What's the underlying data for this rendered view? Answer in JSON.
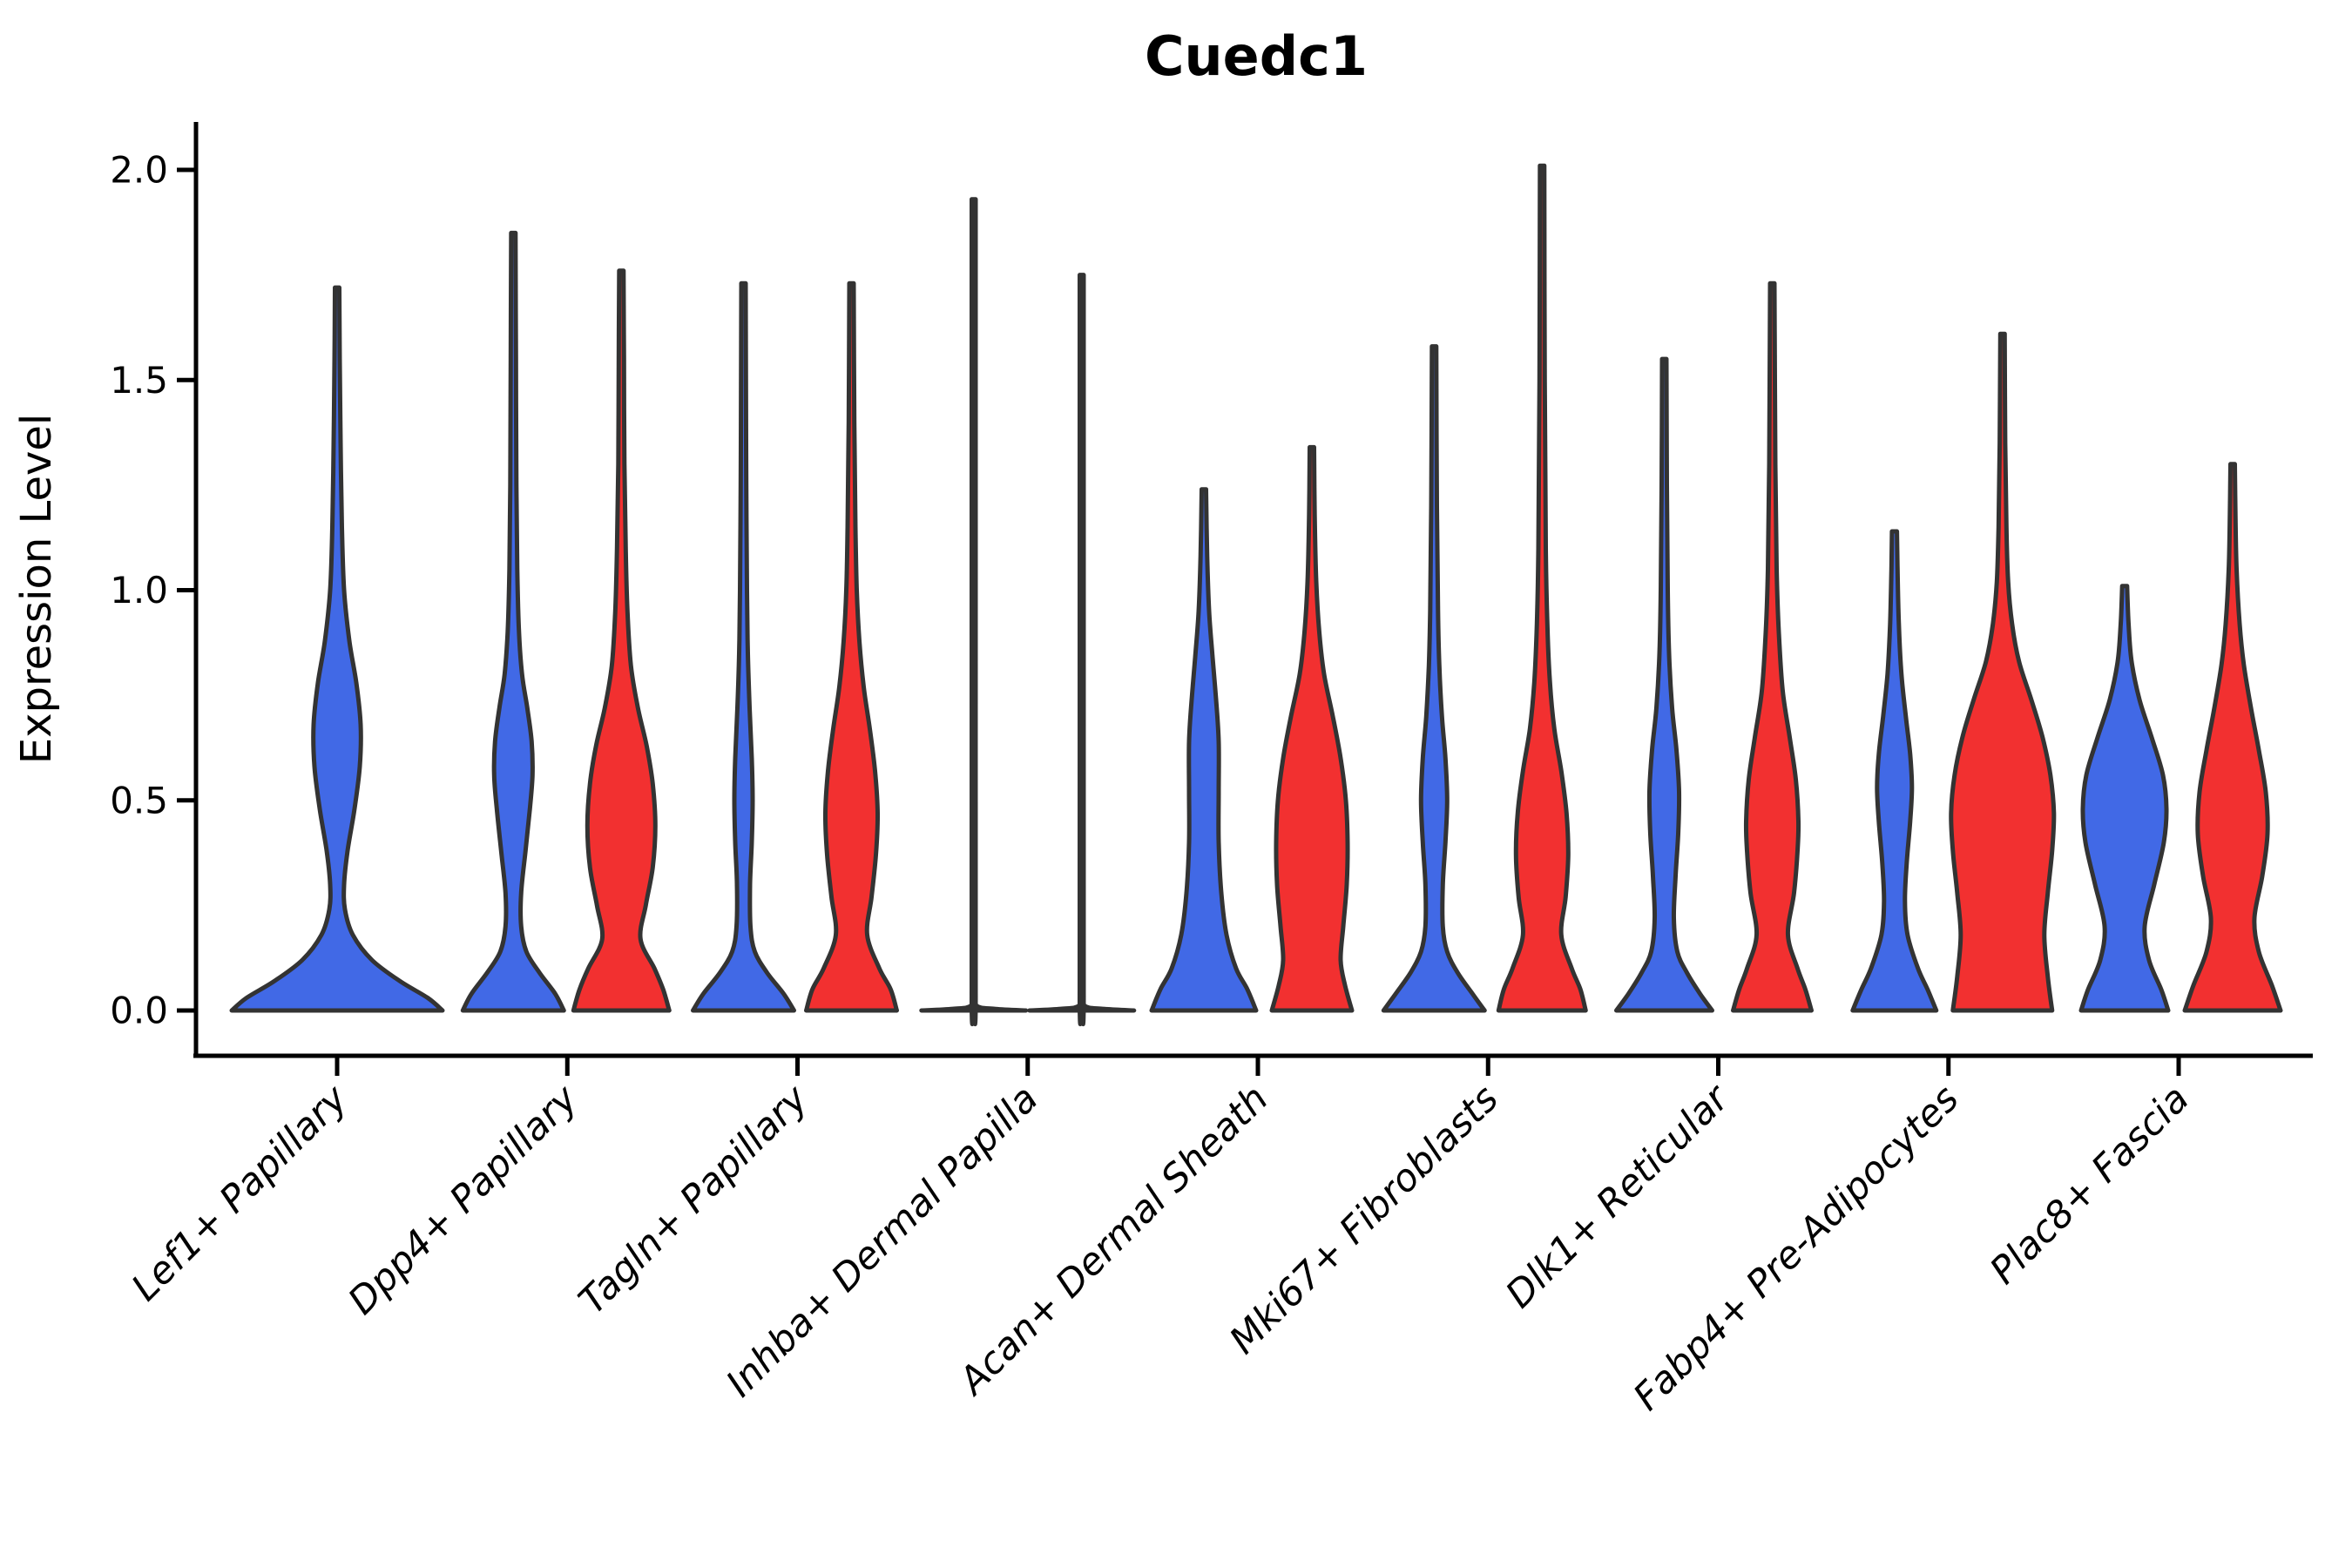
{
  "title": "Cuedc1",
  "chart_data": {
    "type": "violin",
    "title": "Cuedc1",
    "xlabel": "",
    "ylabel": "Expression Level",
    "ylim": [
      0,
      2.05
    ],
    "grid": false,
    "legend": "none",
    "y_ticks": [
      {
        "label": "0.0",
        "value": 0.0
      },
      {
        "label": "0.5",
        "value": 0.5
      },
      {
        "label": "1.0",
        "value": 1.0
      },
      {
        "label": "1.5",
        "value": 1.5
      },
      {
        "label": "2.0",
        "value": 2.0
      }
    ],
    "categories": [
      "Lef1+ Papillary",
      "Dpp4+ Papillary",
      "Tagln+ Papillary",
      "Inhba+ Dermal Papilla",
      "Acan+ Dermal Sheath",
      "Mki67+ Fibroblasts",
      "Dlk1+ Reticular",
      "Fabp4+ Pre-Adipocytes",
      "Plac8+ Fascia"
    ],
    "palette": {
      "blue": "#4169E6",
      "red": "#F23030",
      "outline": "#333333"
    },
    "profile_units": "pairs of [expression_value, half_width_px_at_2700px_canvas]",
    "violins": [
      {
        "category_index": 0,
        "category": "Lef1+ Papillary",
        "color": "blue",
        "position": "center",
        "max_expression": 1.72,
        "profile": [
          [
            0,
            121
          ],
          [
            0.03,
            104
          ],
          [
            0.07,
            72
          ],
          [
            0.12,
            40
          ],
          [
            0.18,
            18
          ],
          [
            0.24,
            9
          ],
          [
            0.3,
            8
          ],
          [
            0.38,
            12
          ],
          [
            0.48,
            20
          ],
          [
            0.58,
            26
          ],
          [
            0.68,
            27
          ],
          [
            0.78,
            22
          ],
          [
            0.88,
            14
          ],
          [
            1.0,
            8
          ],
          [
            1.15,
            5.5
          ],
          [
            1.35,
            4
          ],
          [
            1.55,
            3
          ],
          [
            1.72,
            2.5
          ]
        ]
      },
      {
        "category_index": 1,
        "category": "Dpp4+ Papillary",
        "color": "blue",
        "position": "left",
        "max_expression": 1.85,
        "profile": [
          [
            0,
            58
          ],
          [
            0.04,
            48
          ],
          [
            0.09,
            30
          ],
          [
            0.14,
            15
          ],
          [
            0.2,
            9
          ],
          [
            0.28,
            9
          ],
          [
            0.38,
            14
          ],
          [
            0.48,
            19
          ],
          [
            0.56,
            22
          ],
          [
            0.64,
            21
          ],
          [
            0.72,
            16
          ],
          [
            0.8,
            10
          ],
          [
            0.9,
            6.5
          ],
          [
            1.05,
            4.5
          ],
          [
            1.25,
            3.5
          ],
          [
            1.55,
            3
          ],
          [
            1.85,
            2.5
          ]
        ]
      },
      {
        "category_index": 1,
        "category": "Dpp4+ Papillary",
        "color": "red",
        "position": "right",
        "max_expression": 1.76,
        "profile": [
          [
            0,
            55
          ],
          [
            0.05,
            48
          ],
          [
            0.1,
            38
          ],
          [
            0.17,
            22
          ],
          [
            0.25,
            28
          ],
          [
            0.34,
            36
          ],
          [
            0.44,
            39
          ],
          [
            0.54,
            36
          ],
          [
            0.63,
            29
          ],
          [
            0.72,
            19
          ],
          [
            0.82,
            11
          ],
          [
            0.95,
            7
          ],
          [
            1.1,
            5
          ],
          [
            1.3,
            3.5
          ],
          [
            1.55,
            3
          ],
          [
            1.76,
            2.5
          ]
        ]
      },
      {
        "category_index": 2,
        "category": "Tagln+ Papillary",
        "color": "blue",
        "position": "left",
        "max_expression": 1.73,
        "profile": [
          [
            0,
            58
          ],
          [
            0.04,
            46
          ],
          [
            0.09,
            27
          ],
          [
            0.14,
            13
          ],
          [
            0.2,
            8
          ],
          [
            0.3,
            7.5
          ],
          [
            0.4,
            9.5
          ],
          [
            0.5,
            10.5
          ],
          [
            0.6,
            9.5
          ],
          [
            0.72,
            7
          ],
          [
            0.85,
            5
          ],
          [
            1.0,
            4
          ],
          [
            1.25,
            3.2
          ],
          [
            1.5,
            2.8
          ],
          [
            1.73,
            2.5
          ]
        ]
      },
      {
        "category_index": 2,
        "category": "Tagln+ Papillary",
        "color": "red",
        "position": "right",
        "max_expression": 1.73,
        "profile": [
          [
            0,
            52
          ],
          [
            0.05,
            45
          ],
          [
            0.1,
            32
          ],
          [
            0.18,
            18
          ],
          [
            0.27,
            23
          ],
          [
            0.37,
            28
          ],
          [
            0.47,
            30
          ],
          [
            0.57,
            27
          ],
          [
            0.67,
            21
          ],
          [
            0.77,
            14
          ],
          [
            0.88,
            9
          ],
          [
            1.0,
            6
          ],
          [
            1.15,
            4.5
          ],
          [
            1.4,
            3.2
          ],
          [
            1.73,
            2.5
          ]
        ]
      },
      {
        "category_index": 3,
        "category": "Inhba+ Dermal Papilla",
        "color": "blue",
        "position": "left",
        "max_expression": 1.93,
        "profile": [
          [
            0,
            60
          ],
          [
            0.004,
            24
          ],
          [
            0.012,
            3
          ],
          [
            0.05,
            2.3
          ],
          [
            1.0,
            2.3
          ],
          [
            1.93,
            2.3
          ]
        ]
      },
      {
        "category_index": 3,
        "category": "Inhba+ Dermal Papilla",
        "color": "red",
        "position": "right",
        "max_expression": 1.75,
        "profile": [
          [
            0,
            60
          ],
          [
            0.004,
            24
          ],
          [
            0.012,
            3
          ],
          [
            0.05,
            2.3
          ],
          [
            1.0,
            2.3
          ],
          [
            1.75,
            2.3
          ]
        ]
      },
      {
        "category_index": 4,
        "category": "Acan+ Dermal Sheath",
        "color": "blue",
        "position": "left",
        "max_expression": 1.24,
        "profile": [
          [
            0,
            60
          ],
          [
            0.05,
            50
          ],
          [
            0.1,
            37
          ],
          [
            0.18,
            26
          ],
          [
            0.28,
            20
          ],
          [
            0.4,
            17
          ],
          [
            0.52,
            17
          ],
          [
            0.64,
            17
          ],
          [
            0.74,
            14
          ],
          [
            0.84,
            10
          ],
          [
            0.95,
            6
          ],
          [
            1.08,
            3.8
          ],
          [
            1.24,
            2.5
          ]
        ]
      },
      {
        "category_index": 4,
        "category": "Acan+ Dermal Sheath",
        "color": "red",
        "position": "right",
        "max_expression": 1.34,
        "profile": [
          [
            0,
            46
          ],
          [
            0.06,
            38
          ],
          [
            0.12,
            33
          ],
          [
            0.2,
            36
          ],
          [
            0.3,
            40
          ],
          [
            0.4,
            41
          ],
          [
            0.5,
            39
          ],
          [
            0.6,
            33
          ],
          [
            0.7,
            24
          ],
          [
            0.8,
            14
          ],
          [
            0.9,
            8.5
          ],
          [
            1.02,
            5
          ],
          [
            1.18,
            3.2
          ],
          [
            1.34,
            2.5
          ]
        ]
      },
      {
        "category_index": 5,
        "category": "Mki67+ Fibroblasts",
        "color": "blue",
        "position": "left",
        "max_expression": 1.58,
        "profile": [
          [
            0,
            58
          ],
          [
            0.04,
            44
          ],
          [
            0.09,
            27
          ],
          [
            0.14,
            15
          ],
          [
            0.2,
            10
          ],
          [
            0.3,
            10
          ],
          [
            0.4,
            13
          ],
          [
            0.5,
            15
          ],
          [
            0.6,
            13
          ],
          [
            0.7,
            9
          ],
          [
            0.82,
            6
          ],
          [
            0.95,
            4.5
          ],
          [
            1.2,
            3.2
          ],
          [
            1.58,
            2.5
          ]
        ]
      },
      {
        "category_index": 5,
        "category": "Mki67+ Fibroblasts",
        "color": "red",
        "position": "right",
        "max_expression": 2.01,
        "profile": [
          [
            0,
            50
          ],
          [
            0.05,
            44
          ],
          [
            0.1,
            34
          ],
          [
            0.18,
            22
          ],
          [
            0.27,
            27
          ],
          [
            0.37,
            30
          ],
          [
            0.47,
            28
          ],
          [
            0.57,
            22
          ],
          [
            0.67,
            14
          ],
          [
            0.78,
            9
          ],
          [
            0.92,
            6
          ],
          [
            1.1,
            4.2
          ],
          [
            1.5,
            3
          ],
          [
            2.01,
            2.5
          ]
        ]
      },
      {
        "category_index": 6,
        "category": "Dlk1+ Reticular",
        "color": "blue",
        "position": "left",
        "max_expression": 1.55,
        "profile": [
          [
            0,
            55
          ],
          [
            0.04,
            41
          ],
          [
            0.09,
            26
          ],
          [
            0.14,
            15
          ],
          [
            0.22,
            11
          ],
          [
            0.32,
            13
          ],
          [
            0.42,
            16
          ],
          [
            0.52,
            17
          ],
          [
            0.62,
            14
          ],
          [
            0.72,
            9
          ],
          [
            0.85,
            5.5
          ],
          [
            1.0,
            4
          ],
          [
            1.25,
            3
          ],
          [
            1.55,
            2.5
          ]
        ]
      },
      {
        "category_index": 6,
        "category": "Dlk1+ Reticular",
        "color": "red",
        "position": "right",
        "max_expression": 1.73,
        "profile": [
          [
            0,
            45
          ],
          [
            0.05,
            38
          ],
          [
            0.1,
            29
          ],
          [
            0.18,
            18
          ],
          [
            0.28,
            25
          ],
          [
            0.38,
            29
          ],
          [
            0.45,
            30
          ],
          [
            0.55,
            27
          ],
          [
            0.65,
            20
          ],
          [
            0.76,
            12
          ],
          [
            0.9,
            7.5
          ],
          [
            1.05,
            5
          ],
          [
            1.3,
            3.5
          ],
          [
            1.73,
            2.5
          ]
        ]
      },
      {
        "category_index": 7,
        "category": "Fabp4+ Pre-Adipocytes",
        "color": "blue",
        "position": "left",
        "max_expression": 1.14,
        "profile": [
          [
            0,
            48
          ],
          [
            0.05,
            38
          ],
          [
            0.1,
            27
          ],
          [
            0.18,
            15
          ],
          [
            0.26,
            12
          ],
          [
            0.35,
            14
          ],
          [
            0.45,
            18
          ],
          [
            0.53,
            20
          ],
          [
            0.61,
            18
          ],
          [
            0.7,
            13
          ],
          [
            0.8,
            8
          ],
          [
            0.92,
            5
          ],
          [
            1.05,
            3.5
          ],
          [
            1.14,
            2.8
          ]
        ]
      },
      {
        "category_index": 7,
        "category": "Fabp4+ Pre-Adipocytes",
        "color": "red",
        "position": "right",
        "max_expression": 1.61,
        "profile": [
          [
            0,
            57
          ],
          [
            0.08,
            52
          ],
          [
            0.18,
            48
          ],
          [
            0.28,
            52
          ],
          [
            0.38,
            57
          ],
          [
            0.47,
            59
          ],
          [
            0.56,
            55
          ],
          [
            0.65,
            46
          ],
          [
            0.74,
            33
          ],
          [
            0.83,
            19
          ],
          [
            0.92,
            11
          ],
          [
            1.02,
            6.5
          ],
          [
            1.15,
            4.5
          ],
          [
            1.35,
            3.2
          ],
          [
            1.61,
            2.5
          ]
        ]
      },
      {
        "category_index": 8,
        "category": "Plac8+ Fascia",
        "color": "blue",
        "position": "left",
        "max_expression": 1.01,
        "profile": [
          [
            0,
            50
          ],
          [
            0.05,
            42
          ],
          [
            0.12,
            28
          ],
          [
            0.2,
            23
          ],
          [
            0.3,
            34
          ],
          [
            0.4,
            45
          ],
          [
            0.48,
            48
          ],
          [
            0.56,
            44
          ],
          [
            0.65,
            31
          ],
          [
            0.74,
            17
          ],
          [
            0.83,
            8
          ],
          [
            0.92,
            4.5
          ],
          [
            1.01,
            2.8
          ]
        ]
      },
      {
        "category_index": 8,
        "category": "Plac8+ Fascia",
        "color": "red",
        "position": "right",
        "max_expression": 1.3,
        "profile": [
          [
            0,
            55
          ],
          [
            0.06,
            45
          ],
          [
            0.14,
            30
          ],
          [
            0.22,
            25
          ],
          [
            0.32,
            34
          ],
          [
            0.42,
            40
          ],
          [
            0.52,
            38
          ],
          [
            0.62,
            30
          ],
          [
            0.72,
            21
          ],
          [
            0.82,
            13
          ],
          [
            0.92,
            8
          ],
          [
            1.05,
            4.5
          ],
          [
            1.18,
            3.2
          ],
          [
            1.3,
            2.5
          ]
        ]
      }
    ]
  }
}
